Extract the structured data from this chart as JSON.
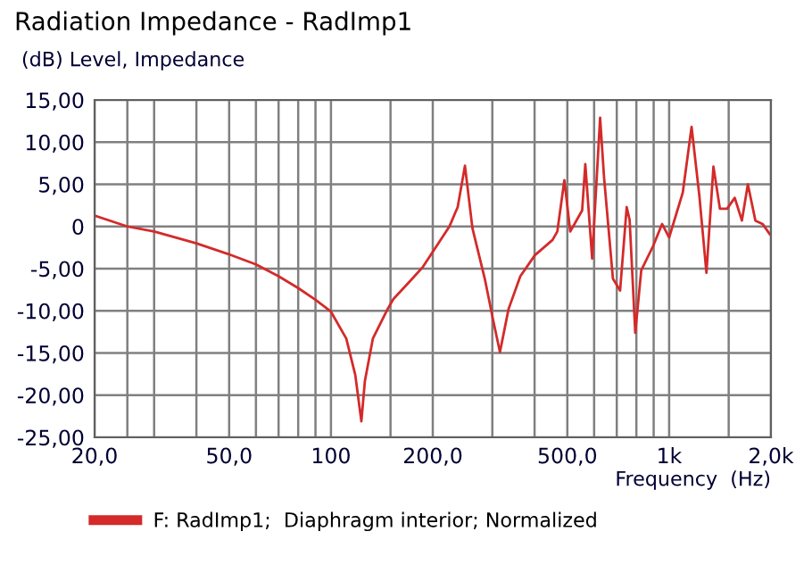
{
  "chart_data": {
    "type": "line",
    "title": "Radiation Impedance - RadImp1",
    "ylabel": "(dB) Level, Impedance",
    "xlabel": "Frequency  (Hz)",
    "log": "x",
    "grid": true,
    "legend": "bottom",
    "line_style": "solid",
    "xlim": [
      20,
      2000
    ],
    "ylim": [
      -25,
      15
    ],
    "xticks": [
      {
        "value": 20,
        "label": "20,0"
      },
      {
        "value": 25,
        "label": null
      },
      {
        "value": 30,
        "label": null
      },
      {
        "value": 40,
        "label": null
      },
      {
        "value": 50,
        "label": "50,0"
      },
      {
        "value": 60,
        "label": null
      },
      {
        "value": 70,
        "label": null
      },
      {
        "value": 80,
        "label": null
      },
      {
        "value": 90,
        "label": null
      },
      {
        "value": 100,
        "label": "100"
      },
      {
        "value": 150,
        "label": null
      },
      {
        "value": 200,
        "label": "200,0"
      },
      {
        "value": 300,
        "label": null
      },
      {
        "value": 400,
        "label": null
      },
      {
        "value": 500,
        "label": "500,0"
      },
      {
        "value": 600,
        "label": null
      },
      {
        "value": 700,
        "label": null
      },
      {
        "value": 800,
        "label": null
      },
      {
        "value": 900,
        "label": null
      },
      {
        "value": 1000,
        "label": "1k"
      },
      {
        "value": 1500,
        "label": null
      },
      {
        "value": 2000,
        "label": "2,0k"
      }
    ],
    "yticks": [
      {
        "value": 15,
        "label": "15,00"
      },
      {
        "value": 10,
        "label": "10,00"
      },
      {
        "value": 5,
        "label": "5,00"
      },
      0,
      {
        "value": -5,
        "label": "-5,00"
      },
      {
        "value": -10,
        "label": "-10,00"
      },
      {
        "value": -15,
        "label": "-15,00"
      },
      {
        "value": -20,
        "label": "-20,00"
      },
      {
        "value": -25,
        "label": "-25,00"
      }
    ],
    "series": [
      {
        "name": "F: RadImp1;  Diaphragm interior; Normalized",
        "color": "#d42a2a",
        "x": [
          20,
          25,
          30,
          40,
          50,
          60,
          70,
          80,
          90,
          100,
          111,
          118,
          123,
          126,
          133,
          147,
          153,
          172,
          187,
          224,
          237,
          249,
          262,
          285,
          302,
          316,
          335,
          363,
          401,
          452,
          467,
          490,
          510,
          553,
          565,
          592,
          625,
          642,
          682,
          716,
          749,
          764,
          794,
          827,
          897,
          953,
          1000,
          1097,
          1165,
          1228,
          1289,
          1352,
          1413,
          1484,
          1563,
          1641,
          1709,
          1799,
          1889,
          1983
        ],
        "values": [
          1.3,
          0,
          -0.6,
          -2.0,
          -3.3,
          -4.5,
          -5.9,
          -7.3,
          -8.7,
          -10.1,
          -13.3,
          -17.6,
          -23.1,
          -18.3,
          -13.3,
          -9.8,
          -8.6,
          -6.4,
          -4.8,
          0,
          2.3,
          7.2,
          -0.2,
          -6.2,
          -11.2,
          -14.9,
          -9.8,
          -5.9,
          -3.4,
          -1.6,
          -0.6,
          5.5,
          -0.6,
          1.9,
          7.4,
          -3.8,
          12.9,
          5.8,
          -6.2,
          -7.6,
          2.3,
          0.8,
          -12.6,
          -5.2,
          -2.3,
          0.3,
          -1.3,
          4.0,
          11.8,
          3.7,
          -5.5,
          7.1,
          2.1,
          2.1,
          3.4,
          0.7,
          5.0,
          0.7,
          0.3,
          -0.9
        ]
      }
    ]
  }
}
